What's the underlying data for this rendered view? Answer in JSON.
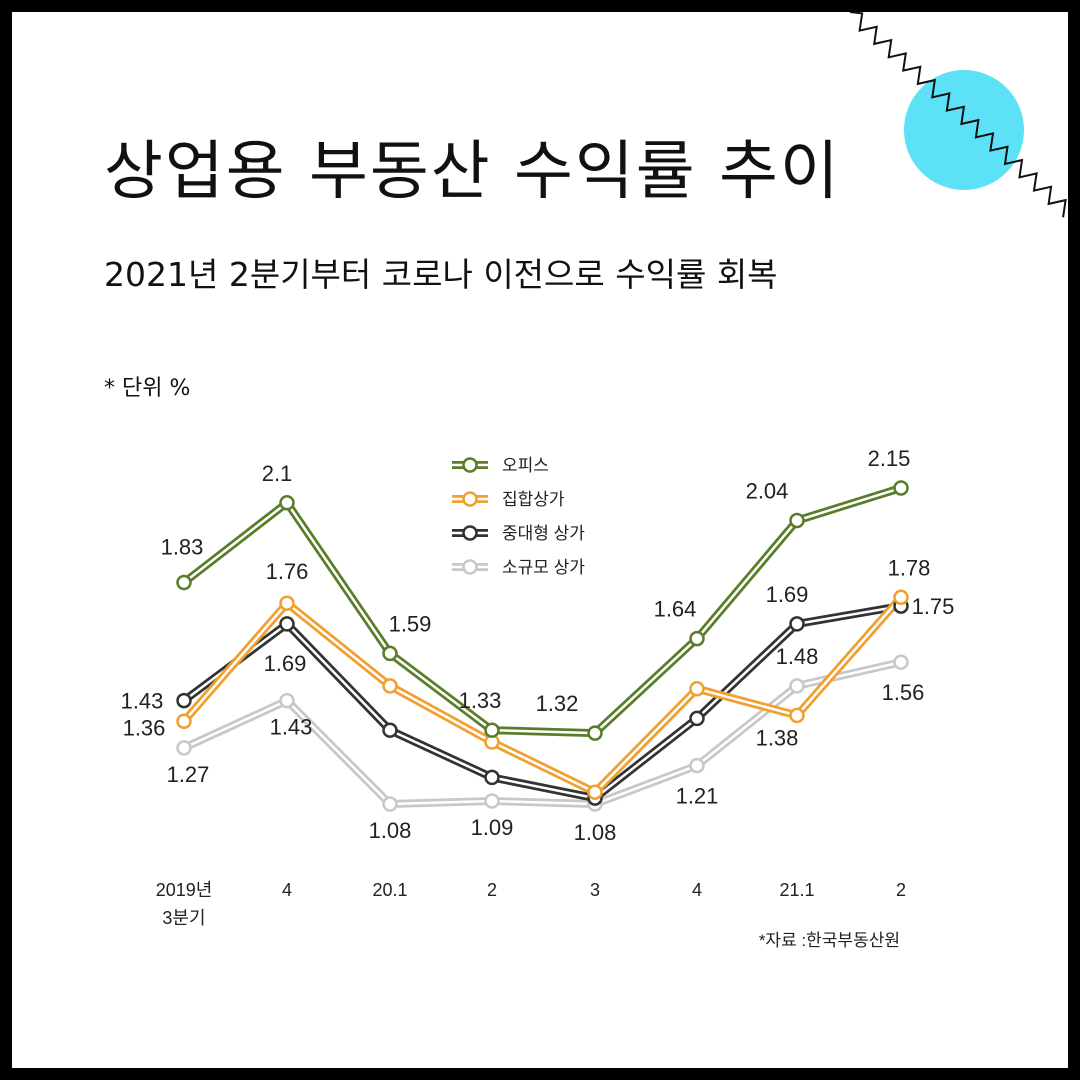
{
  "title": "상업용 부동산 수익률 추이",
  "subtitle": "2021년 2분기부터 코로나 이전으로 수익률 회복",
  "unit_note": "* 단위 %",
  "source": "*자료 :한국부동산원",
  "colors": {
    "accent_circle": "#5ce1f7",
    "office": "#5a7d2a",
    "aggregate": "#f0a030",
    "midlarge": "#333333",
    "small": "#c8c8c8"
  },
  "chart_data": {
    "type": "line",
    "x_labels": [
      [
        "2019년",
        "3분기"
      ],
      [
        "4"
      ],
      [
        "20.1"
      ],
      [
        "2"
      ],
      [
        "3"
      ],
      [
        "4"
      ],
      [
        "21.1"
      ],
      [
        "2"
      ]
    ],
    "legend_position": "top-center",
    "grid": false,
    "ylim": [
      0.9,
      2.3
    ],
    "series": [
      {
        "name": "오피스",
        "color_key": "office",
        "values": [
          1.83,
          2.1,
          1.59,
          1.33,
          1.32,
          1.64,
          2.04,
          2.15
        ],
        "labels": [
          "1.83",
          "2.1",
          "1.59",
          "1.33",
          "1.32",
          "1.64",
          "2.04",
          "2.15"
        ]
      },
      {
        "name": "집합상가",
        "color_key": "aggregate",
        "values": [
          1.36,
          1.76,
          1.48,
          1.29,
          1.12,
          1.47,
          1.38,
          1.78
        ],
        "labels": [
          "1.36",
          "1.76",
          null,
          null,
          null,
          null,
          "1.38",
          "1.78"
        ]
      },
      {
        "name": "중대형 상가",
        "color_key": "midlarge",
        "values": [
          1.43,
          1.69,
          1.33,
          1.17,
          1.1,
          1.37,
          1.69,
          1.75
        ],
        "labels": [
          "1.43",
          "1.69",
          null,
          null,
          null,
          null,
          "1.69",
          "1.75"
        ]
      },
      {
        "name": "소규모 상가",
        "color_key": "small",
        "values": [
          1.27,
          1.43,
          1.08,
          1.09,
          1.08,
          1.21,
          1.48,
          1.56
        ],
        "labels": [
          "1.27",
          "1.43",
          "1.08",
          "1.09",
          "1.08",
          "1.21",
          "1.48",
          "1.56"
        ]
      }
    ]
  }
}
